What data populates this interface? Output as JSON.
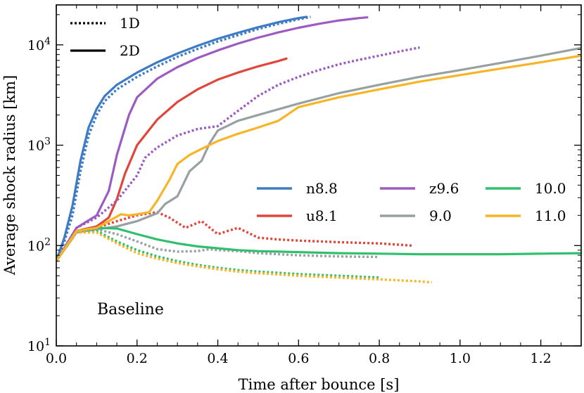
{
  "chart_data": {
    "type": "line",
    "title": "",
    "xlabel": "Time after bounce [s]",
    "ylabel": "Average shock radius [km]",
    "xlim": [
      0.0,
      1.3
    ],
    "ylim": [
      10,
      25000
    ],
    "yscale": "log",
    "grid": false,
    "xticks": [
      {
        "value": 0.0,
        "label": "0.0"
      },
      {
        "value": 0.2,
        "label": "0.2"
      },
      {
        "value": 0.4,
        "label": "0.4"
      },
      {
        "value": 0.6,
        "label": "0.6"
      },
      {
        "value": 0.8,
        "label": "0.8"
      },
      {
        "value": 1.0,
        "label": "1.0"
      },
      {
        "value": 1.2,
        "label": "1.2"
      }
    ],
    "yticks": [
      {
        "value": 10,
        "base": "10",
        "exp": "1"
      },
      {
        "value": 100,
        "base": "10",
        "exp": "2"
      },
      {
        "value": 1000,
        "base": "10",
        "exp": "3"
      },
      {
        "value": 10000,
        "base": "10",
        "exp": "4"
      }
    ],
    "style_legend": [
      {
        "label": "1D",
        "dash": "dotted"
      },
      {
        "label": "2D",
        "dash": "solid"
      }
    ],
    "annotation": "Baseline",
    "series": [
      {
        "name": "n8.8",
        "color": "#3d7cc4",
        "mode": "2D",
        "legend": true,
        "x": [
          0.0,
          0.02,
          0.04,
          0.06,
          0.08,
          0.1,
          0.12,
          0.15,
          0.2,
          0.25,
          0.3,
          0.35,
          0.4,
          0.45,
          0.5,
          0.55,
          0.6,
          0.62
        ],
        "y": [
          70,
          120,
          250,
          700,
          1500,
          2300,
          3100,
          4000,
          5300,
          6700,
          8200,
          9800,
          11500,
          13200,
          15000,
          16800,
          18500,
          19000
        ]
      },
      {
        "name": "n8.8 1D",
        "color": "#3d7cc4",
        "mode": "1D",
        "legend": false,
        "x": [
          0.0,
          0.02,
          0.04,
          0.06,
          0.08,
          0.1,
          0.12,
          0.15,
          0.2,
          0.25,
          0.3,
          0.35,
          0.4,
          0.45,
          0.5,
          0.55,
          0.6,
          0.63
        ],
        "y": [
          70,
          110,
          200,
          550,
          1250,
          2000,
          2750,
          3600,
          4800,
          6100,
          7600,
          9100,
          10800,
          12500,
          14400,
          16200,
          18000,
          19000
        ]
      },
      {
        "name": "u8.1",
        "color": "#e0463c",
        "mode": "2D",
        "legend": true,
        "x": [
          0.0,
          0.05,
          0.1,
          0.13,
          0.15,
          0.17,
          0.2,
          0.25,
          0.3,
          0.35,
          0.4,
          0.45,
          0.5,
          0.55,
          0.57
        ],
        "y": [
          70,
          140,
          155,
          190,
          290,
          520,
          1000,
          1800,
          2700,
          3600,
          4500,
          5300,
          6100,
          6900,
          7300
        ]
      },
      {
        "name": "u8.1 1D",
        "color": "#e0463c",
        "mode": "1D",
        "legend": false,
        "x": [
          0.0,
          0.05,
          0.1,
          0.15,
          0.2,
          0.25,
          0.28,
          0.32,
          0.36,
          0.4,
          0.45,
          0.5,
          0.55,
          0.6,
          0.7,
          0.8,
          0.88
        ],
        "y": [
          70,
          135,
          150,
          175,
          200,
          215,
          190,
          150,
          175,
          130,
          150,
          120,
          115,
          112,
          108,
          105,
          100
        ]
      },
      {
        "name": "z9.6",
        "color": "#9b5bc1",
        "mode": "2D",
        "legend": true,
        "x": [
          0.0,
          0.05,
          0.1,
          0.13,
          0.15,
          0.18,
          0.2,
          0.25,
          0.3,
          0.35,
          0.4,
          0.45,
          0.5,
          0.55,
          0.6,
          0.65,
          0.7,
          0.75,
          0.77
        ],
        "y": [
          70,
          150,
          200,
          350,
          800,
          2000,
          3000,
          4600,
          6000,
          7400,
          8800,
          10300,
          11800,
          13300,
          14800,
          16200,
          17500,
          18500,
          18800
        ]
      },
      {
        "name": "z9.6 1D",
        "color": "#9b5bc1",
        "mode": "1D",
        "legend": false,
        "x": [
          0.0,
          0.05,
          0.1,
          0.15,
          0.2,
          0.22,
          0.25,
          0.3,
          0.35,
          0.4,
          0.45,
          0.5,
          0.55,
          0.6,
          0.65,
          0.7,
          0.75,
          0.8,
          0.85,
          0.9
        ],
        "y": [
          70,
          150,
          190,
          280,
          500,
          750,
          950,
          1250,
          1450,
          1550,
          2200,
          3100,
          4000,
          4800,
          5600,
          6400,
          7100,
          7800,
          8600,
          9400
        ]
      },
      {
        "name": "9.0",
        "color": "#97a0a3",
        "mode": "2D",
        "legend": true,
        "x": [
          0.0,
          0.05,
          0.1,
          0.15,
          0.2,
          0.25,
          0.27,
          0.3,
          0.33,
          0.36,
          0.38,
          0.4,
          0.45,
          0.5,
          0.6,
          0.7,
          0.8,
          0.9,
          1.0,
          1.1,
          1.2,
          1.3
        ],
        "y": [
          70,
          135,
          145,
          155,
          175,
          210,
          260,
          310,
          550,
          700,
          1050,
          1400,
          1750,
          2000,
          2600,
          3300,
          4000,
          4800,
          5600,
          6600,
          7800,
          9300
        ]
      },
      {
        "name": "9.0 1D",
        "color": "#97a0a3",
        "mode": "1D",
        "legend": false,
        "x": [
          0.0,
          0.05,
          0.1,
          0.15,
          0.2,
          0.25,
          0.3,
          0.35,
          0.38,
          0.4,
          0.45,
          0.5,
          0.6,
          0.7,
          0.8
        ],
        "y": [
          70,
          135,
          145,
          130,
          110,
          92,
          87,
          88,
          92,
          90,
          88,
          84,
          80,
          78,
          77
        ]
      },
      {
        "name": "10.0",
        "color": "#30c06c",
        "mode": "2D",
        "legend": true,
        "x": [
          0.0,
          0.05,
          0.1,
          0.15,
          0.2,
          0.25,
          0.3,
          0.35,
          0.4,
          0.45,
          0.5,
          0.55,
          0.6,
          0.7,
          0.8,
          0.9,
          1.0,
          1.1,
          1.2,
          1.3
        ],
        "y": [
          70,
          140,
          150,
          148,
          130,
          115,
          105,
          98,
          94,
          90,
          88,
          87,
          86,
          84,
          83,
          82,
          82,
          82,
          83,
          84
        ]
      },
      {
        "name": "10.0 1D",
        "color": "#30c06c",
        "mode": "1D",
        "legend": false,
        "x": [
          0.0,
          0.05,
          0.1,
          0.15,
          0.2,
          0.25,
          0.3,
          0.35,
          0.4,
          0.45,
          0.5,
          0.6,
          0.7,
          0.8
        ],
        "y": [
          70,
          135,
          140,
          110,
          90,
          78,
          70,
          64,
          60,
          57,
          55,
          52,
          50,
          48
        ]
      },
      {
        "name": "11.0",
        "color": "#f7b526",
        "mode": "2D",
        "legend": true,
        "x": [
          0.0,
          0.05,
          0.1,
          0.13,
          0.16,
          0.18,
          0.2,
          0.23,
          0.25,
          0.28,
          0.3,
          0.33,
          0.36,
          0.4,
          0.45,
          0.5,
          0.55,
          0.6,
          0.7,
          0.8,
          0.9,
          1.0,
          1.1,
          1.2,
          1.3
        ],
        "y": [
          70,
          140,
          150,
          175,
          205,
          200,
          205,
          215,
          280,
          450,
          650,
          800,
          920,
          1100,
          1300,
          1500,
          1750,
          2400,
          3000,
          3600,
          4300,
          5000,
          5800,
          6700,
          7800
        ]
      },
      {
        "name": "11.0 1D",
        "color": "#f7b526",
        "mode": "1D",
        "legend": false,
        "x": [
          0.0,
          0.05,
          0.1,
          0.15,
          0.2,
          0.25,
          0.3,
          0.35,
          0.4,
          0.45,
          0.5,
          0.6,
          0.7,
          0.8,
          0.9,
          0.93
        ],
        "y": [
          70,
          135,
          135,
          105,
          84,
          74,
          67,
          62,
          58,
          55,
          53,
          50,
          48,
          46,
          44,
          43
        ]
      }
    ]
  }
}
